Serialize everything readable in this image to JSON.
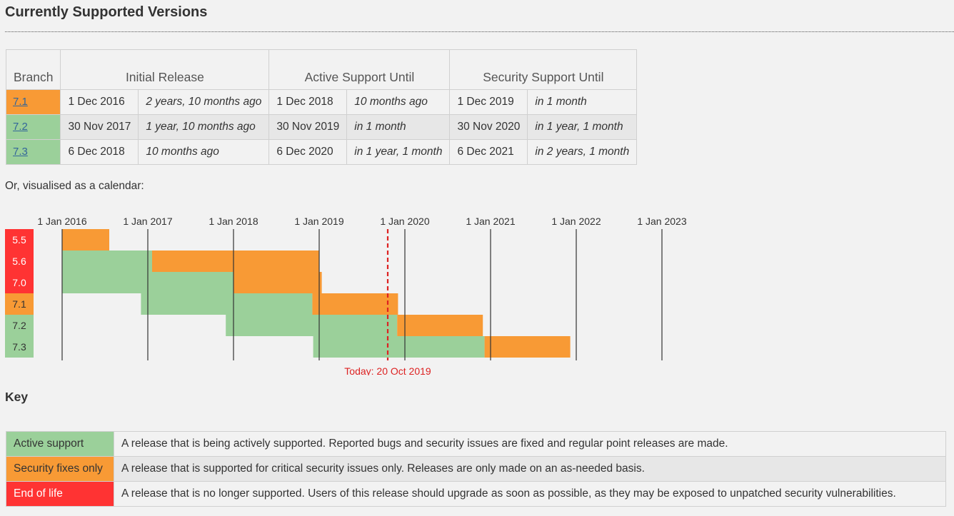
{
  "page": {
    "title": "Currently Supported Versions",
    "calendar_intro": "Or, visualised as a calendar:",
    "key_heading": "Key"
  },
  "versions_table": {
    "headers": {
      "branch": "Branch",
      "initial": "Initial Release",
      "active": "Active Support Until",
      "security": "Security Support Until"
    },
    "rows": [
      {
        "branch": "7.1",
        "status": "security",
        "initial_date": "1 Dec 2016",
        "initial_ago": "2 years, 10 months ago",
        "active_date": "1 Dec 2018",
        "active_ago": "10 months ago",
        "security_date": "1 Dec 2019",
        "security_ago": "in 1 month"
      },
      {
        "branch": "7.2",
        "status": "active",
        "initial_date": "30 Nov 2017",
        "initial_ago": "1 year, 10 months ago",
        "active_date": "30 Nov 2019",
        "active_ago": "in 1 month",
        "security_date": "30 Nov 2020",
        "security_ago": "in 1 year, 1 month"
      },
      {
        "branch": "7.3",
        "status": "active",
        "initial_date": "6 Dec 2018",
        "initial_ago": "10 months ago",
        "active_date": "6 Dec 2020",
        "active_ago": "in 1 year, 1 month",
        "security_date": "6 Dec 2021",
        "security_ago": "in 2 years, 1 month"
      }
    ]
  },
  "colors": {
    "active": "#9bd09a",
    "security": "#f89a35",
    "eol": "#ff3333",
    "today_line": "#dd2222",
    "grid_line": "#333333"
  },
  "calendar": {
    "year_labels": [
      "1 Jan 2016",
      "1 Jan 2017",
      "1 Jan 2018",
      "1 Jan 2019",
      "1 Jan 2020",
      "1 Jan 2021",
      "1 Jan 2022",
      "1 Jan 2023"
    ],
    "year_ticks": [
      2016,
      2017,
      2018,
      2019,
      2020,
      2021,
      2022,
      2023
    ],
    "branches": [
      {
        "label": "5.5",
        "status": "eol",
        "start": 2016.0,
        "active_end": 2016.0,
        "security_end": 2016.55
      },
      {
        "label": "5.6",
        "status": "eol",
        "start": 2016.0,
        "active_end": 2017.05,
        "security_end": 2019.0
      },
      {
        "label": "7.0",
        "status": "eol",
        "start": 2016.0,
        "active_end": 2018.0,
        "security_end": 2019.03
      },
      {
        "label": "7.1",
        "status": "security",
        "start": 2016.92,
        "active_end": 2018.92,
        "security_end": 2019.92
      },
      {
        "label": "7.2",
        "status": "active",
        "start": 2017.91,
        "active_end": 2019.91,
        "security_end": 2020.91
      },
      {
        "label": "7.3",
        "status": "active",
        "start": 2018.93,
        "active_end": 2020.93,
        "security_end": 2021.93
      }
    ],
    "today": 2019.8,
    "today_label": "Today: 20 Oct 2019"
  },
  "key": {
    "rows": [
      {
        "status": "active",
        "label": "Active support",
        "description": "A release that is being actively supported. Reported bugs and security issues are fixed and regular point releases are made."
      },
      {
        "status": "security",
        "label": "Security fixes only",
        "description": "A release that is supported for critical security issues only. Releases are only made on an as-needed basis."
      },
      {
        "status": "eol",
        "label": "End of life",
        "description": "A release that is no longer supported. Users of this release should upgrade as soon as possible, as they may be exposed to unpatched security vulnerabilities."
      }
    ]
  }
}
